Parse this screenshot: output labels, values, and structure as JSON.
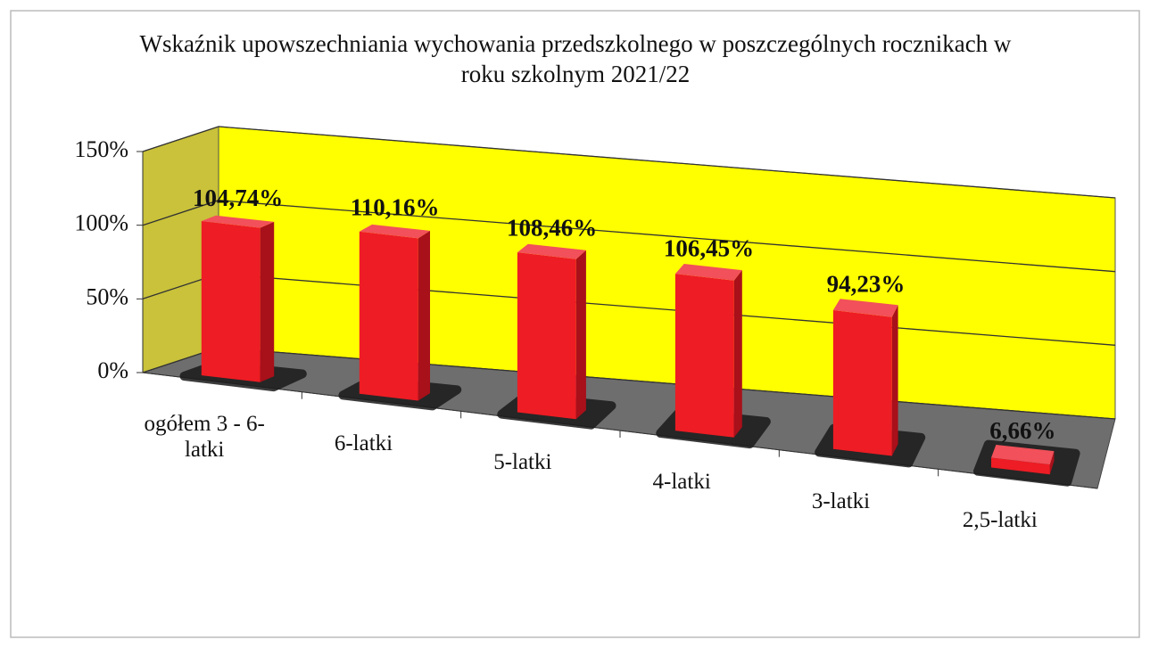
{
  "chart_data": {
    "type": "bar3d",
    "title": "Wskaźnik upowszechniania wychowania przedszkolnego w poszczególnych rocznikach w roku szkolnym 2021/22",
    "categories": [
      "ogółem 3 - 6-latki",
      "6-latki",
      "5-latki",
      "4-latki",
      "3-latki",
      "2,5-latki"
    ],
    "values": [
      104.74,
      110.16,
      108.46,
      106.45,
      94.23,
      6.66
    ],
    "value_labels": [
      "104,74%",
      "110,16%",
      "108,46%",
      "106,45%",
      "94,23%",
      "6,66%"
    ],
    "color": "#ee1c24",
    "ylim": [
      0,
      150
    ],
    "yticks": [
      {
        "value": 0,
        "label": "0%"
      },
      {
        "value": 50,
        "label": "50%"
      },
      {
        "value": 100,
        "label": "100%"
      },
      {
        "value": 150,
        "label": "150%"
      }
    ],
    "grid": true
  }
}
